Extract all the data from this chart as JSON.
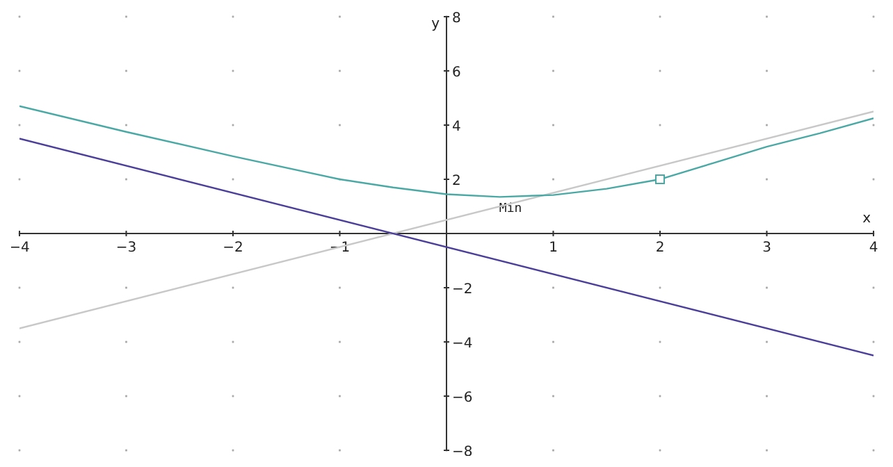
{
  "chart_data": {
    "type": "line",
    "xlabel": "x",
    "ylabel": "y",
    "xlim": [
      -4,
      4
    ],
    "ylim": [
      -8,
      8
    ],
    "xticks": [
      -4,
      -3,
      -2,
      -1,
      {
        "value": 0,
        "label": null
      },
      1,
      2,
      3,
      4
    ],
    "yticks": [
      -8,
      -6,
      -4,
      -2,
      {
        "value": 0,
        "label": null
      },
      2,
      4,
      6,
      8
    ],
    "grid": true,
    "annotations": [
      {
        "text": "Min",
        "x": 0.6,
        "y": 1.35
      }
    ],
    "series": [
      {
        "color": "#c8c8c8",
        "x": [
          -4,
          4
        ],
        "values": [
          -3.5,
          4.5
        ]
      },
      {
        "color": "#4b3f9a",
        "x": [
          -4,
          4
        ],
        "values": [
          3.5,
          -4.5
        ]
      },
      {
        "color": "#4aa9a4",
        "x": [
          -4,
          -3,
          -2,
          -1,
          -0.5,
          0,
          0.5,
          1,
          1.5,
          2,
          2.5,
          3,
          3.5,
          4
        ],
        "values": [
          4.7,
          3.75,
          2.85,
          2.0,
          1.7,
          1.45,
          1.35,
          1.42,
          1.65,
          2.0,
          2.6,
          3.2,
          3.7,
          4.25
        ]
      },
      {
        "type": "scatter",
        "marker": "square",
        "color": "#4aa9a4",
        "x": [
          2
        ],
        "values": [
          2
        ]
      }
    ]
  }
}
